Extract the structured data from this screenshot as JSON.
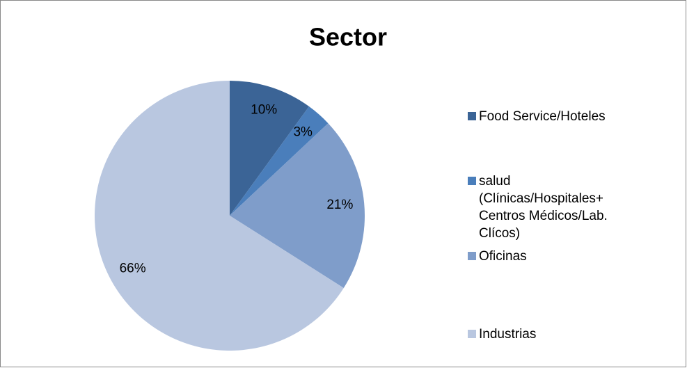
{
  "chart_data": {
    "type": "pie",
    "title": "Sector",
    "categories": [
      "Food Service/Hoteles",
      "salud (Clínicas/Hospitales+Centros Médicos/Lab. Clícos)",
      "Oficinas",
      "Industrias"
    ],
    "values": [
      10,
      3,
      21,
      66
    ],
    "value_labels": [
      "10%",
      "3%",
      "21%",
      "66%"
    ],
    "colors": [
      "#3b6496",
      "#4a7ebb",
      "#7f9dca",
      "#b9c7e0"
    ],
    "legend": "right"
  }
}
